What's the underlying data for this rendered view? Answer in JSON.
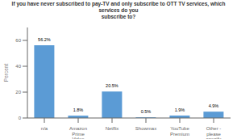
{
  "chart_data": {
    "type": "bar",
    "title": "If you have never subscribed to pay-TV and only subscribe to OTT TV services, which services do you\nsubscribe to?",
    "ylabel": "Percent",
    "categories": [
      "n/a",
      "Amazon\nPrime\nVideo",
      "Netflix",
      "Showmax",
      "YouTube\nPremium",
      "Other -\nplease\nspecify"
    ],
    "values": [
      56.2,
      1.8,
      20.5,
      0.5,
      1.9,
      4.9
    ],
    "value_labels": [
      "56.2%",
      "1.8%",
      "20.5%",
      "0.5%",
      "1.9%",
      "4.9%"
    ],
    "data_labels": true,
    "color": "#5B9BD5",
    "ylim": [
      0,
      70
    ],
    "yticks": [
      0,
      20,
      40,
      60
    ],
    "grid": false
  }
}
